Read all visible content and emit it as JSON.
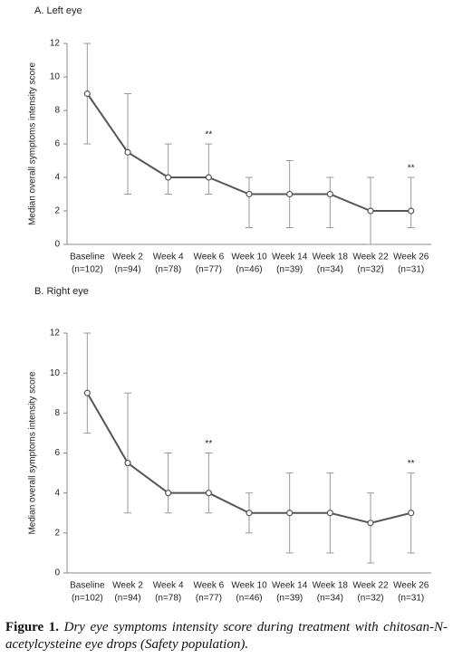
{
  "chart_data": [
    {
      "type": "line",
      "title": "A.   Left eye",
      "ylabel": "Median overall symptoms intensity score",
      "categories": [
        "Baseline",
        "Week 2",
        "Week 4",
        "Week 6",
        "Week 10",
        "Week 14",
        "Week 18",
        "Week 22",
        "Week 26"
      ],
      "category_sublabels": [
        "(n=102)",
        "(n=94)",
        "(n=78)",
        "(n=77)",
        "(n=46)",
        "(n=39)",
        "(n=34)",
        "(n=32)",
        "(n=31)"
      ],
      "series": [
        {
          "color": "#555555",
          "values": [
            9,
            5.5,
            4,
            4,
            3,
            3,
            3,
            2,
            2
          ],
          "low": [
            6,
            3,
            3,
            3,
            1,
            1,
            1,
            0,
            1
          ],
          "high": [
            12,
            9,
            6,
            6,
            4,
            5,
            4,
            4,
            4
          ]
        }
      ],
      "annotations": [
        {
          "text": "**",
          "x": "Week 6"
        },
        {
          "text": "**",
          "x": "Week 26"
        }
      ],
      "ylim": [
        0,
        12
      ],
      "yticks": [
        0,
        2,
        4,
        6,
        8,
        10,
        12
      ],
      "grid": false
    },
    {
      "type": "line",
      "title": "B.   Right eye",
      "ylabel": "Median overall symptoms intensity score",
      "categories": [
        "Baseline",
        "Week 2",
        "Week 4",
        "Week 6",
        "Week 10",
        "Week 14",
        "Week 18",
        "Week 22",
        "Week 26"
      ],
      "category_sublabels": [
        "(n=102)",
        "(n=94)",
        "(n=78)",
        "(n=77)",
        "(n=46)",
        "(n=39)",
        "(n=34)",
        "(n=32)",
        "(n=31)"
      ],
      "series": [
        {
          "color": "#555555",
          "values": [
            9,
            5.5,
            4,
            4,
            3,
            3,
            3,
            2.5,
            3
          ],
          "low": [
            7,
            3,
            3,
            3,
            2,
            1,
            1,
            0.5,
            1
          ],
          "high": [
            12,
            9,
            6,
            6,
            4,
            5,
            5,
            4,
            5
          ]
        }
      ],
      "annotations": [
        {
          "text": "**",
          "x": "Week 6"
        },
        {
          "text": "**",
          "x": "Week 26"
        }
      ],
      "ylim": [
        0,
        12
      ],
      "yticks": [
        0,
        2,
        4,
        6,
        8,
        10,
        12
      ],
      "grid": false
    }
  ],
  "caption": {
    "label": "Figure 1.",
    "text": "Dry eye symptoms intensity score during treatment with chitosan-N-acetylcysteine eye drops (Safety population)."
  }
}
